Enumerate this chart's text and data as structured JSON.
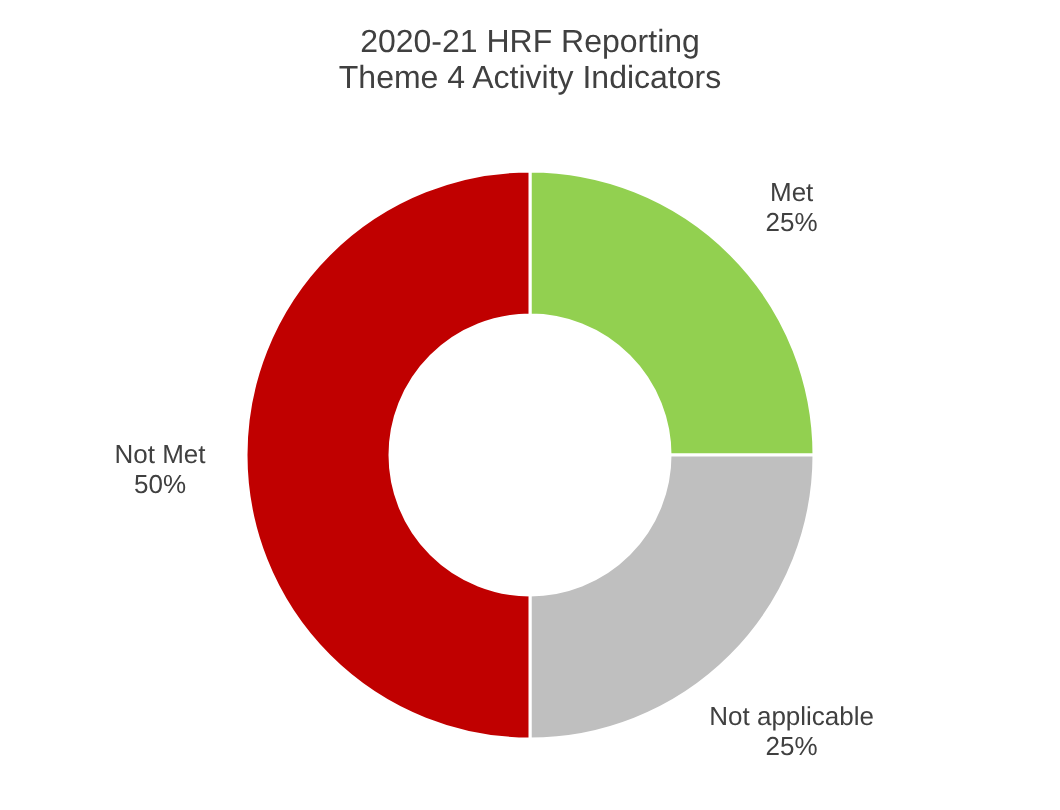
{
  "chart_data": {
    "type": "donut",
    "title": [
      "2020-21 HRF Reporting",
      "Theme 4 Activity Indicators"
    ],
    "categories": [
      "Met",
      "Not applicable",
      "Not Met"
    ],
    "values": [
      25,
      25,
      50
    ],
    "colors": [
      "#92d050",
      "#bfbfbf",
      "#c00000"
    ],
    "value_labels": [
      "25%",
      "25%",
      "50%"
    ],
    "legend": false
  }
}
